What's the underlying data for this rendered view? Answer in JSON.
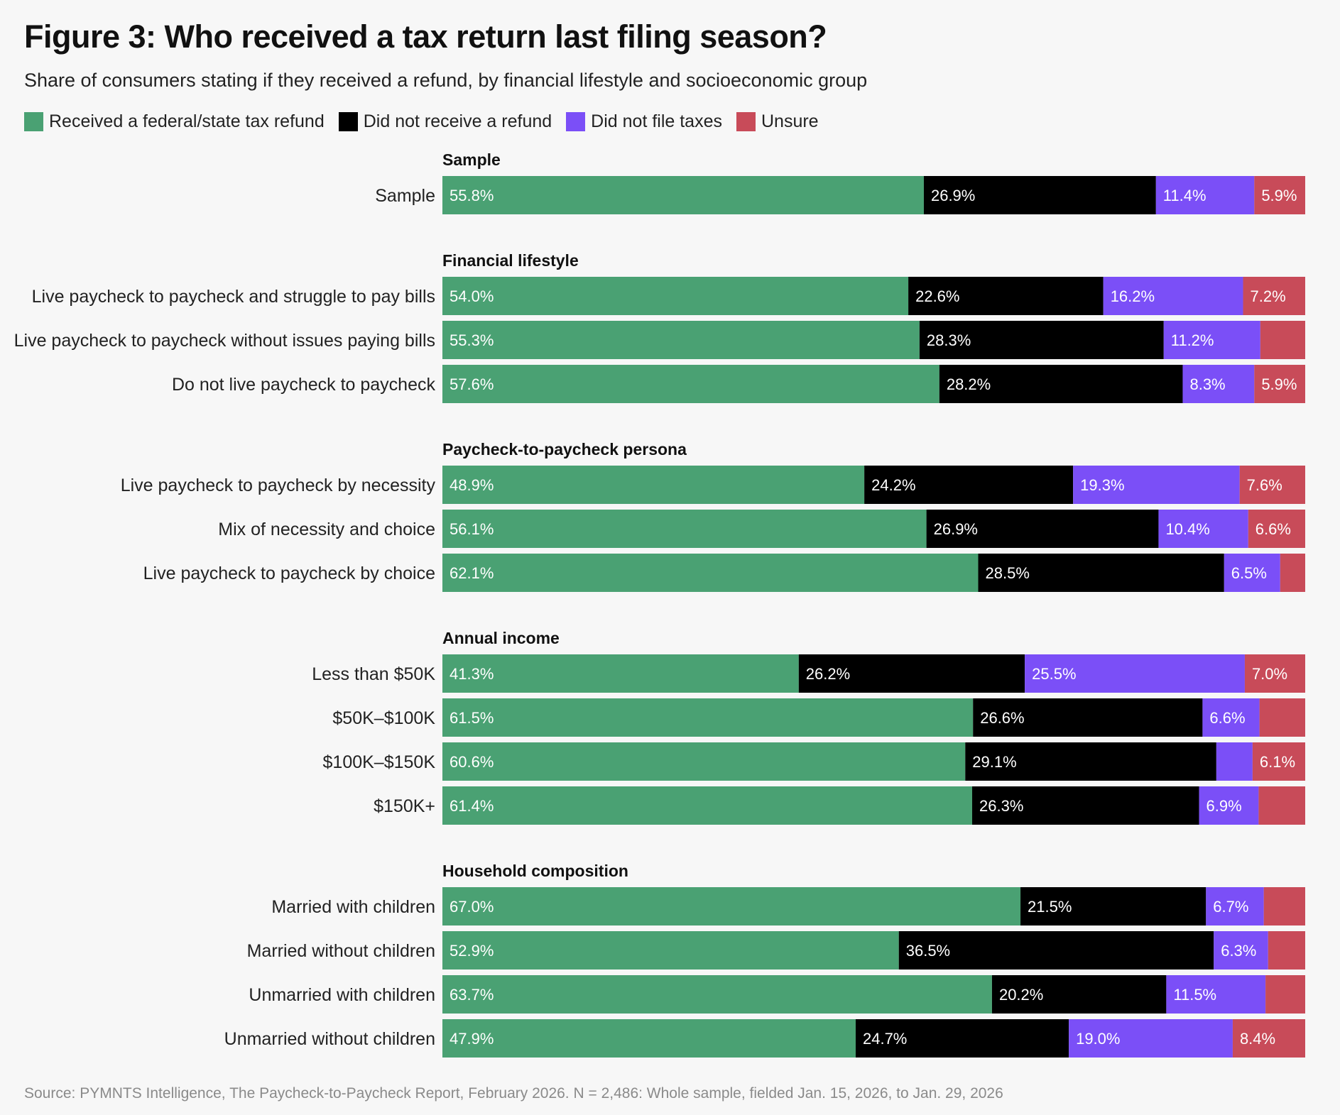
{
  "title": "Figure 3: Who received a tax return last filing season?",
  "subtitle": "Share of consumers stating if they received a refund, by financial lifestyle and socioeconomic group",
  "source": "Source: PYMNTS Intelligence, The Paycheck-to-Paycheck Report, February 2026. N = 2,486: Whole sample, fielded Jan. 15, 2026, to Jan. 29, 2026",
  "colors": {
    "received": "#4aa173",
    "not_received": "#000000",
    "not_filed": "#7b4ff7",
    "unsure": "#c84b59"
  },
  "chart_data": {
    "type": "bar",
    "orientation": "horizontal",
    "stacked": true,
    "xlim": [
      0,
      100
    ],
    "legend_position": "top-left",
    "grid": false,
    "series": [
      {
        "name": "Received a federal/state tax refund",
        "color": "#4aa173"
      },
      {
        "name": "Did not receive a refund",
        "color": "#000000"
      },
      {
        "name": "Did not file taxes",
        "color": "#7b4ff7"
      },
      {
        "name": "Unsure",
        "color": "#c84b59"
      }
    ],
    "groups": [
      {
        "name": "Sample",
        "rows": [
          {
            "label": "Sample",
            "values": [
              55.8,
              26.9,
              11.4,
              5.9
            ],
            "labels": [
              "55.8%",
              "26.9%",
              "11.4%",
              "5.9%"
            ]
          }
        ]
      },
      {
        "name": "Financial lifestyle",
        "rows": [
          {
            "label": "Live paycheck to paycheck and struggle to pay bills",
            "values": [
              54.0,
              22.6,
              16.2,
              7.2
            ],
            "labels": [
              "54.0%",
              "22.6%",
              "16.2%",
              "7.2%"
            ]
          },
          {
            "label": "Live paycheck to paycheck without issues paying bills",
            "values": [
              55.3,
              28.3,
              11.2,
              5.2
            ],
            "labels": [
              "55.3%",
              "28.3%",
              "11.2%",
              ""
            ]
          },
          {
            "label": "Do not live paycheck to paycheck",
            "values": [
              57.6,
              28.2,
              8.3,
              5.9
            ],
            "labels": [
              "57.6%",
              "28.2%",
              "8.3%",
              "5.9%"
            ]
          }
        ]
      },
      {
        "name": "Paycheck-to-paycheck persona",
        "rows": [
          {
            "label": "Live paycheck to paycheck by necessity",
            "values": [
              48.9,
              24.2,
              19.3,
              7.6
            ],
            "labels": [
              "48.9%",
              "24.2%",
              "19.3%",
              "7.6%"
            ]
          },
          {
            "label": "Mix of necessity and choice",
            "values": [
              56.1,
              26.9,
              10.4,
              6.6
            ],
            "labels": [
              "56.1%",
              "26.9%",
              "10.4%",
              "6.6%"
            ]
          },
          {
            "label": "Live paycheck to paycheck by choice",
            "values": [
              62.1,
              28.5,
              6.5,
              2.9
            ],
            "labels": [
              "62.1%",
              "28.5%",
              "6.5%",
              ""
            ]
          }
        ]
      },
      {
        "name": "Annual income",
        "rows": [
          {
            "label": "Less than $50K",
            "values": [
              41.3,
              26.2,
              25.5,
              7.0
            ],
            "labels": [
              "41.3%",
              "26.2%",
              "25.5%",
              "7.0%"
            ]
          },
          {
            "label": "$50K–$100K",
            "values": [
              61.5,
              26.6,
              6.6,
              5.3
            ],
            "labels": [
              "61.5%",
              "26.6%",
              "6.6%",
              ""
            ]
          },
          {
            "label": "$100K–$150K",
            "values": [
              60.6,
              29.1,
              4.2,
              6.1
            ],
            "labels": [
              "60.6%",
              "29.1%",
              "",
              "6.1%"
            ]
          },
          {
            "label": "$150K+",
            "values": [
              61.4,
              26.3,
              6.9,
              5.4
            ],
            "labels": [
              "61.4%",
              "26.3%",
              "6.9%",
              ""
            ]
          }
        ]
      },
      {
        "name": "Household composition",
        "rows": [
          {
            "label": "Married with children",
            "values": [
              67.0,
              21.5,
              6.7,
              4.8
            ],
            "labels": [
              "67.0%",
              "21.5%",
              "6.7%",
              ""
            ]
          },
          {
            "label": "Married without children",
            "values": [
              52.9,
              36.5,
              6.3,
              4.3
            ],
            "labels": [
              "52.9%",
              "36.5%",
              "6.3%",
              ""
            ]
          },
          {
            "label": "Unmarried with children",
            "values": [
              63.7,
              20.2,
              11.5,
              4.6
            ],
            "labels": [
              "63.7%",
              "20.2%",
              "11.5%",
              ""
            ]
          },
          {
            "label": "Unmarried without children",
            "values": [
              47.9,
              24.7,
              19.0,
              8.4
            ],
            "labels": [
              "47.9%",
              "24.7%",
              "19.0%",
              "8.4%"
            ]
          }
        ]
      }
    ]
  }
}
